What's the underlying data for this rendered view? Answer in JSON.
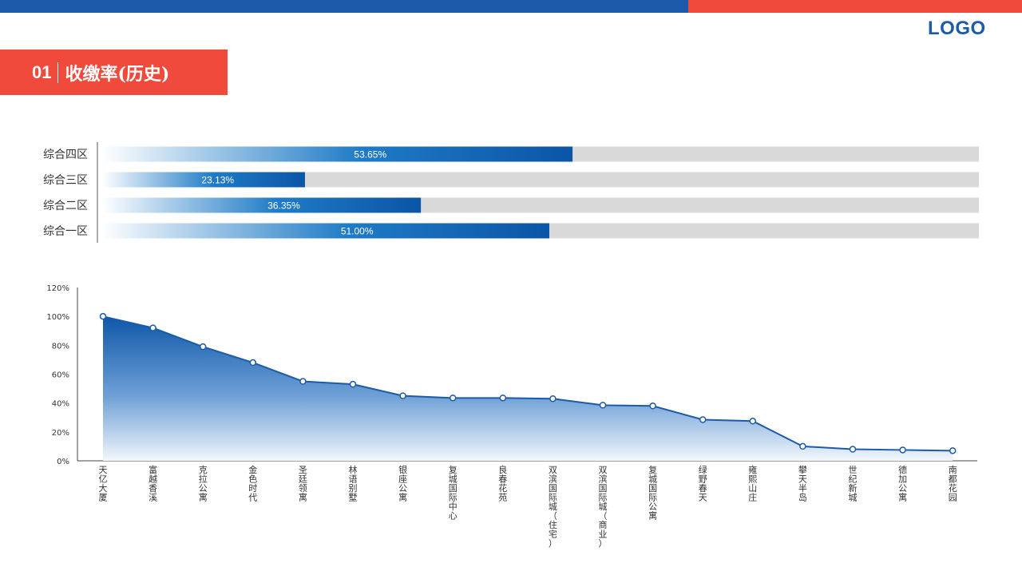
{
  "header": {
    "logo": "LOGO"
  },
  "title": {
    "number": "01",
    "text": "收缴率(历史)"
  },
  "colors": {
    "blue": "#1c5ba9",
    "red": "#ef4a3c",
    "track": "#d9d9d9"
  },
  "chart_data": [
    {
      "type": "bar",
      "orientation": "horizontal",
      "categories": [
        "综合四区",
        "综合三区",
        "综合二区",
        "综合一区"
      ],
      "values": [
        53.65,
        23.13,
        36.35,
        51.0
      ],
      "value_labels": [
        "53.65%",
        "23.13%",
        "36.35%",
        "51.00%"
      ],
      "xlim": [
        0,
        100
      ]
    },
    {
      "type": "area",
      "categories": [
        "天亿大厦",
        "富越香溪",
        "克拉公寓",
        "金色时代",
        "圣廷领寓",
        "林语别墅",
        "银座公寓",
        "复城国际中心",
        "良春花苑",
        "双滨国际城（住宅）",
        "双滨国际城（商业）",
        "复城国际公寓",
        "绿野春天",
        "雍熙山庄",
        "攀天半岛",
        "世纪新城",
        "德加公寓",
        "南都花园"
      ],
      "values": [
        100,
        92,
        79,
        68,
        55,
        53,
        45,
        43.5,
        43.5,
        43,
        38.5,
        38,
        28.5,
        27.5,
        10,
        8,
        7.5,
        7
      ],
      "ylim": [
        0,
        120
      ],
      "yticks": [
        "0%",
        "20%",
        "40%",
        "60%",
        "80%",
        "100%",
        "120%"
      ],
      "grid": false
    }
  ]
}
